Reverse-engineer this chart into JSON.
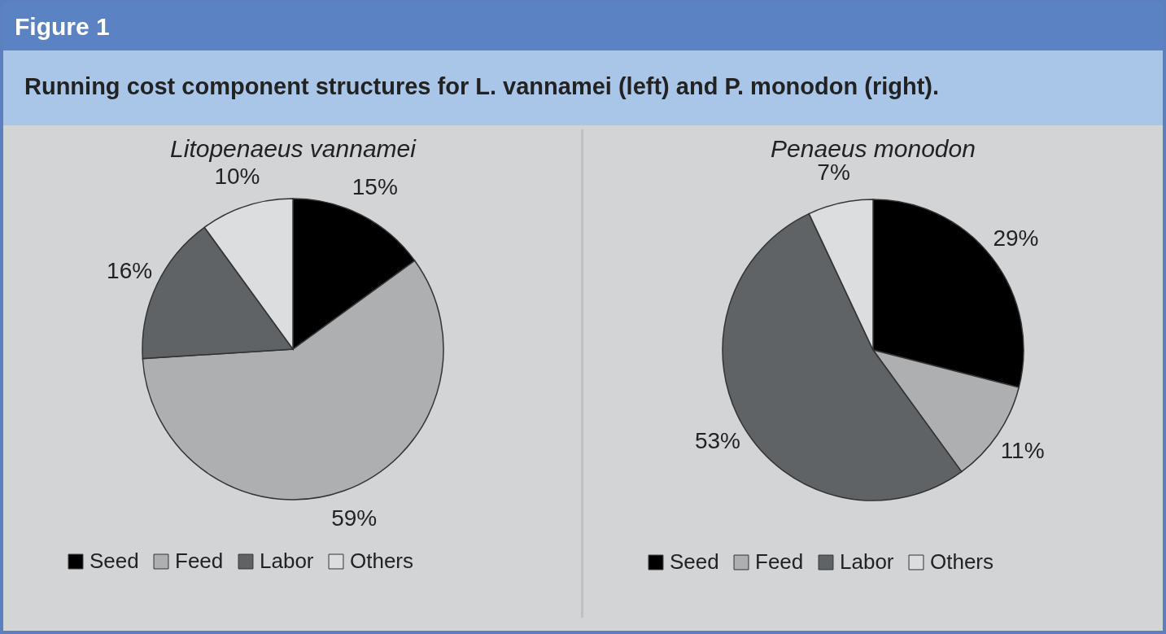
{
  "chart_data": [
    {
      "type": "pie",
      "title": "Litopenaeus vannamei",
      "annotations": [
        "Figure 1",
        "Running cost component structures for L. vannamei (left) and P. monodon (right)."
      ],
      "categories": [
        "Seed",
        "Feed",
        "Labor",
        "Others"
      ],
      "values": [
        15,
        59,
        16,
        10
      ],
      "value_labels": [
        "15%",
        "59%",
        "16%",
        "10%"
      ],
      "colors": [
        "#000000",
        "#aeafb1",
        "#5f6366",
        "#dcdddf"
      ],
      "legend": "bottom"
    },
    {
      "type": "pie",
      "title": "Penaeus monodon",
      "categories": [
        "Seed",
        "Feed",
        "Labor",
        "Others"
      ],
      "values": [
        29,
        11,
        53,
        7
      ],
      "value_labels": [
        "29%",
        "11%",
        "53%",
        "7%"
      ],
      "colors": [
        "#000000",
        "#aeafb1",
        "#5f6366",
        "#dcdddf"
      ],
      "legend": "bottom"
    }
  ]
}
